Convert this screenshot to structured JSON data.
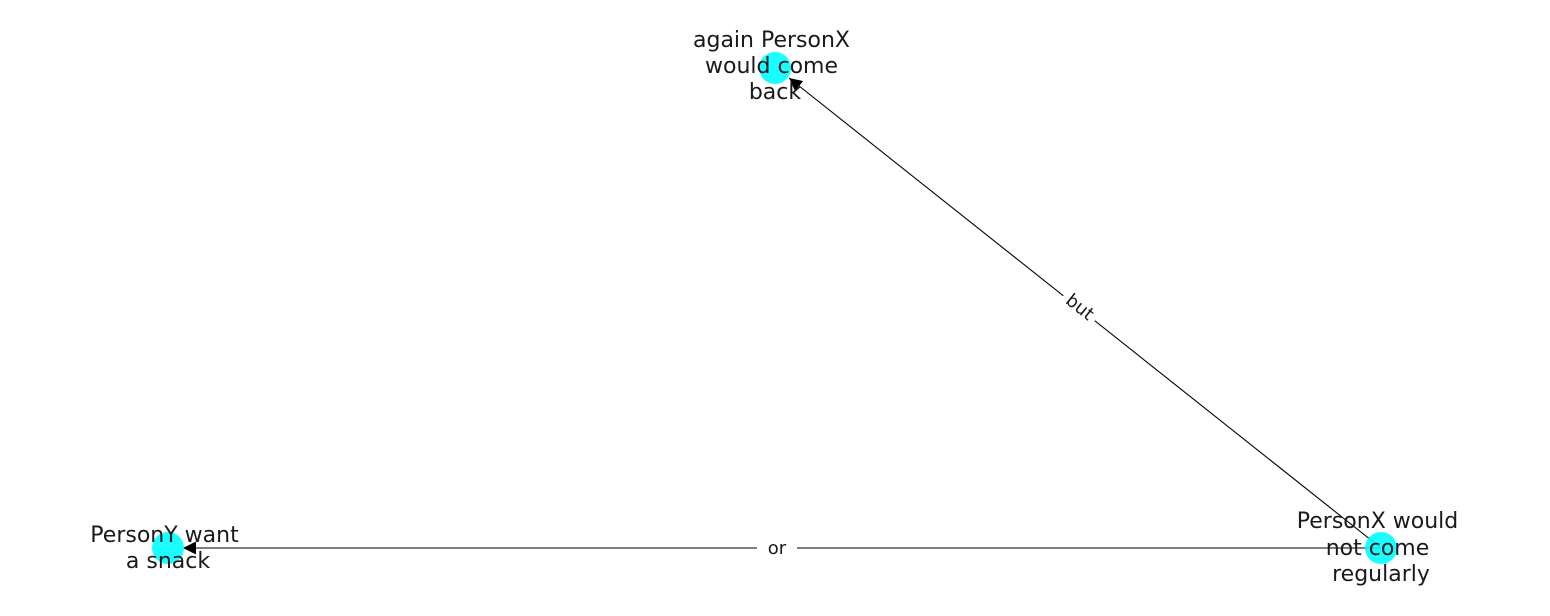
{
  "graph": {
    "node_color": "#00ffff",
    "edge_color": "#000000",
    "nodes": [
      {
        "id": "n1",
        "lines": [
          "again PersonX",
          "would come",
          "back"
        ]
      },
      {
        "id": "n2",
        "lines": [
          "PersonX would",
          "not come",
          "regularly"
        ]
      },
      {
        "id": "n3",
        "lines": [
          "PersonY want",
          "a snack"
        ]
      }
    ],
    "edges": [
      {
        "from": "n2",
        "to": "n1",
        "label": "but"
      },
      {
        "from": "n2",
        "to": "n3",
        "label": "or"
      }
    ]
  }
}
